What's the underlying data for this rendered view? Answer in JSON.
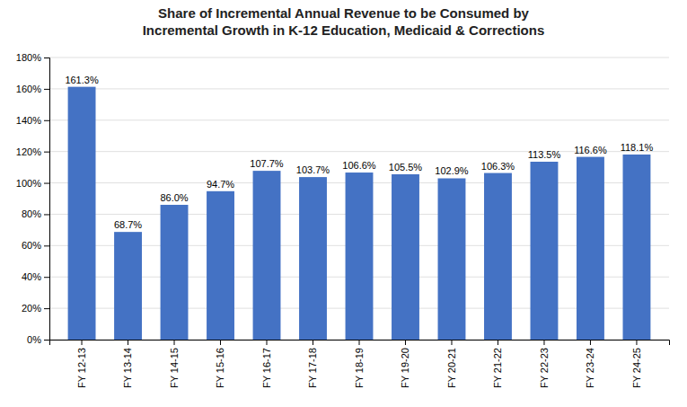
{
  "chart_data": {
    "type": "bar",
    "title": "Share of Incremental Annual Revenue to be Consumed by\nIncremental Growth in K-12 Education, Medicaid & Corrections",
    "categories": [
      "FY 12-13",
      "FY 13-14",
      "FY 14-15",
      "FY 15-16",
      "FY 16-17",
      "FY 17-18",
      "FY 18-19",
      "FY 19-20",
      "FY 20-21",
      "FY 21-22",
      "FY 22-23",
      "FY 23-24",
      "FY 24-25"
    ],
    "values": [
      161.3,
      68.7,
      86.0,
      94.7,
      107.7,
      103.7,
      106.6,
      105.5,
      102.9,
      106.3,
      113.5,
      116.6,
      118.1
    ],
    "value_labels": [
      "161.3%",
      "68.7%",
      "86.0%",
      "94.7%",
      "107.7%",
      "103.7%",
      "106.6%",
      "105.5%",
      "102.9%",
      "106.3%",
      "113.5%",
      "116.6%",
      "118.1%"
    ],
    "data_labels": true,
    "color": "#4472C4",
    "ylim": [
      0,
      180
    ],
    "yticks": [
      {
        "value": 0,
        "label": "0%"
      },
      {
        "value": 20,
        "label": "20%"
      },
      {
        "value": 40,
        "label": "40%"
      },
      {
        "value": 60,
        "label": "60%"
      },
      {
        "value": 80,
        "label": "80%"
      },
      {
        "value": 100,
        "label": "100%"
      },
      {
        "value": 120,
        "label": "120%"
      },
      {
        "value": 140,
        "label": "140%"
      },
      {
        "value": 160,
        "label": "160%"
      },
      {
        "value": 180,
        "label": "180%"
      }
    ],
    "grid": true
  }
}
